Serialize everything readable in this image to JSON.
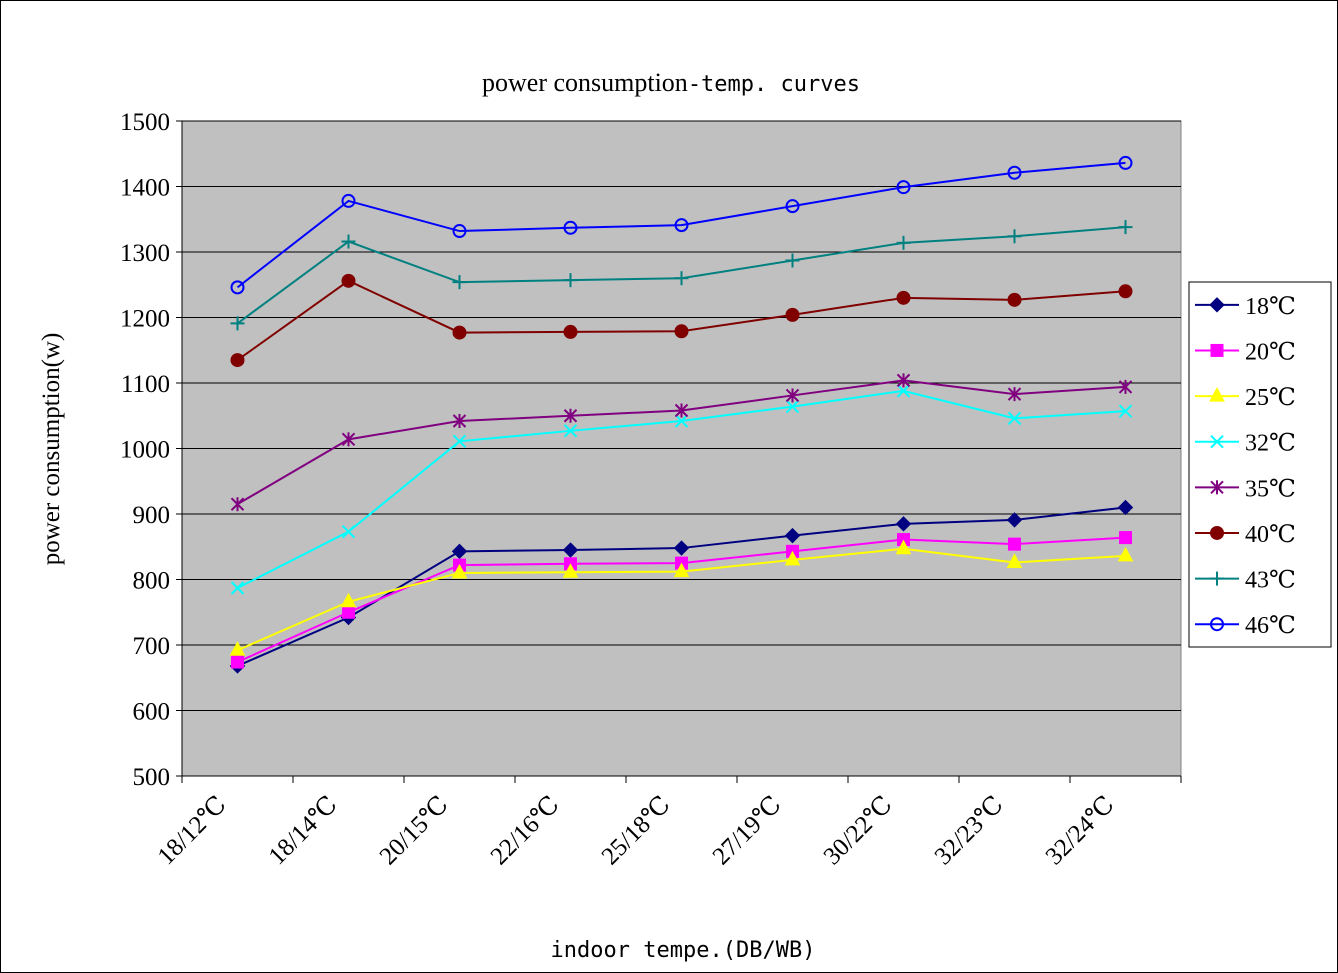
{
  "chart_data": {
    "type": "line",
    "title": "power consumption-temp. curves",
    "xlabel": "indoor tempe.(DB/WB)",
    "ylabel": "power consumption(w)",
    "ylim": [
      500,
      1500
    ],
    "yticks": [
      500,
      600,
      700,
      800,
      900,
      1000,
      1100,
      1200,
      1300,
      1400,
      1500
    ],
    "grid": true,
    "legend": "right",
    "categories": [
      "18/12℃",
      "18/14℃",
      "20/15℃",
      "22/16℃",
      "25/18℃",
      "27/19℃",
      "30/22℃",
      "32/23℃",
      "32/24℃"
    ],
    "series": [
      {
        "name": "18℃",
        "color": "#000080",
        "marker": "diamond",
        "values": [
          668,
          742,
          843,
          845,
          848,
          867,
          885,
          891,
          910
        ]
      },
      {
        "name": "20℃",
        "color": "#ff00ff",
        "marker": "square",
        "values": [
          674,
          750,
          822,
          824,
          825,
          843,
          861,
          854,
          864
        ]
      },
      {
        "name": "25℃",
        "color": "#ffff00",
        "marker": "triangle",
        "values": [
          692,
          766,
          810,
          811,
          812,
          830,
          847,
          826,
          836
        ]
      },
      {
        "name": "32℃",
        "color": "#00ffff",
        "marker": "x",
        "values": [
          787,
          873,
          1011,
          1027,
          1042,
          1064,
          1088,
          1046,
          1057
        ]
      },
      {
        "name": "35℃",
        "color": "#800080",
        "marker": "asterisk",
        "values": [
          915,
          1014,
          1042,
          1050,
          1058,
          1081,
          1104,
          1083,
          1094
        ]
      },
      {
        "name": "40℃",
        "color": "#800000",
        "marker": "circle-filled",
        "values": [
          1135,
          1256,
          1177,
          1178,
          1179,
          1204,
          1230,
          1227,
          1240
        ]
      },
      {
        "name": "43℃",
        "color": "#008080",
        "marker": "plus",
        "values": [
          1191,
          1316,
          1254,
          1257,
          1260,
          1287,
          1314,
          1324,
          1338
        ]
      },
      {
        "name": "46℃",
        "color": "#0000ff",
        "marker": "circle-open",
        "values": [
          1246,
          1378,
          1332,
          1337,
          1341,
          1370,
          1399,
          1421,
          1436
        ]
      }
    ]
  }
}
